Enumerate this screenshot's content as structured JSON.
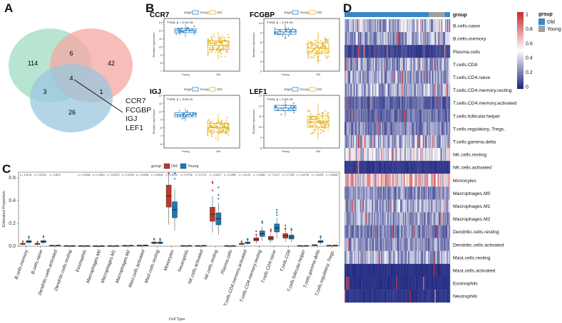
{
  "panel_labels": {
    "a": "A",
    "b": "B",
    "c": "C",
    "d": "D"
  },
  "colors": {
    "venn": [
      "#9fdcc1",
      "#f6a7a2",
      "#9bc7dd"
    ],
    "young": "#2f7fc1",
    "old": "#e6b422",
    "box_old": "#c0392b",
    "box_young": "#1f78b4",
    "heat_low": "#1a237e",
    "heat_mid": "#ffffff",
    "heat_high": "#c62828",
    "group_old": "#3a87c8",
    "group_young": "#a0a0a0"
  },
  "chart_data": [
    {
      "type": "venn",
      "panel": "A",
      "regions": {
        "only_left": "114",
        "only_right": "42",
        "only_bottom": "26",
        "left_right": "6",
        "left_bottom": "3",
        "right_bottom": "1",
        "all": "4"
      },
      "annotation": [
        "CCR7",
        "FCGBP",
        "IGJ",
        "LEF1"
      ]
    },
    {
      "type": "scatter",
      "panel": "B",
      "legend_title": "stage",
      "legend": [
        "Young",
        "Old"
      ],
      "ylabel": "Relative expression",
      "plots": [
        {
          "gene": "CCR7",
          "pvalue": "T-test, p = 2.2e-16",
          "young_median": 12.0,
          "old_median": 10.2,
          "ylim": [
            7,
            13.5
          ]
        },
        {
          "gene": "FCGBP",
          "pvalue": "T-test, p = 2.2e-16",
          "young_median": 9.1,
          "old_median": 7.4,
          "ylim": [
            5,
            10.5
          ]
        },
        {
          "gene": "IGJ",
          "pvalue": "T-test, p = 3.6e-11",
          "young_median": 9.6,
          "old_median": 8.0,
          "ylim": [
            5.5,
            12
          ]
        },
        {
          "gene": "LEF1",
          "pvalue": "T-test, p = 2.2e-16",
          "young_median": 11.8,
          "old_median": 10.5,
          "ylim": [
            8,
            13
          ]
        }
      ]
    },
    {
      "type": "box",
      "panel": "C",
      "legend_title": "group",
      "legend": [
        "Old",
        "Young"
      ],
      "xlabel": "Cell Type",
      "ylabel": "Estimated Proportion",
      "ylim": [
        0,
        0.65
      ],
      "yticks": [
        "0.0",
        "0.2",
        "0.4",
        "0.6"
      ],
      "categories": [
        "B.cells.memory",
        "B.cells.naive",
        "Dendritic.cells.activated",
        "Dendritic.cells.resting",
        "Eosinophils",
        "Macrophages.M0",
        "Macrophages.M1",
        "Macrophages.M2",
        "Mast.cells.activated",
        "Mast.cells.resting",
        "Monocytes",
        "Neutrophils",
        "NK.cells.activated",
        "NK.cells.resting",
        "Plasma.cells",
        "T.cells.CD4.memory.activated",
        "T.cells.CD4.memory.resting",
        "T.cells.CD4.naive",
        "T.cells.CD8",
        "T.cells.follicular.helper",
        "T.cells.gamma.delta",
        "T.cells.regulatory..Tregs."
      ],
      "pvalues": [
        "p = 1.6e-09",
        "p = 0.00014",
        "p = 0.4879",
        "",
        "p = 0.03486",
        "p = 0.02494",
        "p = 0.05278",
        "p = 0.01196",
        "p = 0.09268",
        "p = 0.69040",
        "p = 3.2e-09",
        "p = 0.37736",
        "p = 0.1774",
        "p = 0.00417",
        "p = 0.22890",
        "p = 1.9e-09",
        "p = 0.04584",
        "p = 7.1e-07",
        "p = 0.77530",
        "p = 0.00799",
        "p = 0.00292",
        "p = 0.84662"
      ],
      "old_medians": [
        0.02,
        0.02,
        0.005,
        0.002,
        0.002,
        0.001,
        0.002,
        0.004,
        0.006,
        0.03,
        0.44,
        0.003,
        0.003,
        0.28,
        0.002,
        0.02,
        0.06,
        0.07,
        0.09,
        0.003,
        0.01,
        0.005
      ],
      "young_medians": [
        0.04,
        0.04,
        0.006,
        0.002,
        0.002,
        0.001,
        0.002,
        0.005,
        0.007,
        0.03,
        0.32,
        0.003,
        0.004,
        0.24,
        0.002,
        0.03,
        0.11,
        0.16,
        0.08,
        0.003,
        0.04,
        0.006
      ]
    },
    {
      "type": "heatmap",
      "panel": "D",
      "group_label": "group",
      "legend_title": "group",
      "legend": [
        "Old",
        "Young"
      ],
      "scale_ticks": [
        "1",
        "0.8",
        "0.6",
        "0.4",
        "0.2",
        "0"
      ],
      "rows": [
        "B.cells.naive",
        "B.cells.memory",
        "Plasma.cells",
        "T.cells.CD8",
        "T.cells.CD4.naive",
        "T.cells.CD4.memory.resting",
        "T.cells.CD4.memory.activated",
        "T.cells.follicular.helper",
        "T.cells.regulatory..Tregs.",
        "T.cells.gamma.delta",
        "NK.cells.resting",
        "NK.cells.activated",
        "Monocytes",
        "Macrophages.M0",
        "Macrophages.M1",
        "Macrophages.M2",
        "Dendritic.cells.resting",
        "Dendritic.cells.activated",
        "Mast.cells.resting",
        "Mast.cells.activated",
        "Eosinophils",
        "Neutrophils"
      ],
      "row_intensity": [
        0.35,
        0.3,
        0.08,
        0.3,
        0.28,
        0.3,
        0.15,
        0.18,
        0.22,
        0.3,
        0.42,
        0.05,
        0.55,
        0.25,
        0.3,
        0.28,
        0.22,
        0.25,
        0.3,
        0.03,
        0.03,
        0.04
      ]
    }
  ]
}
